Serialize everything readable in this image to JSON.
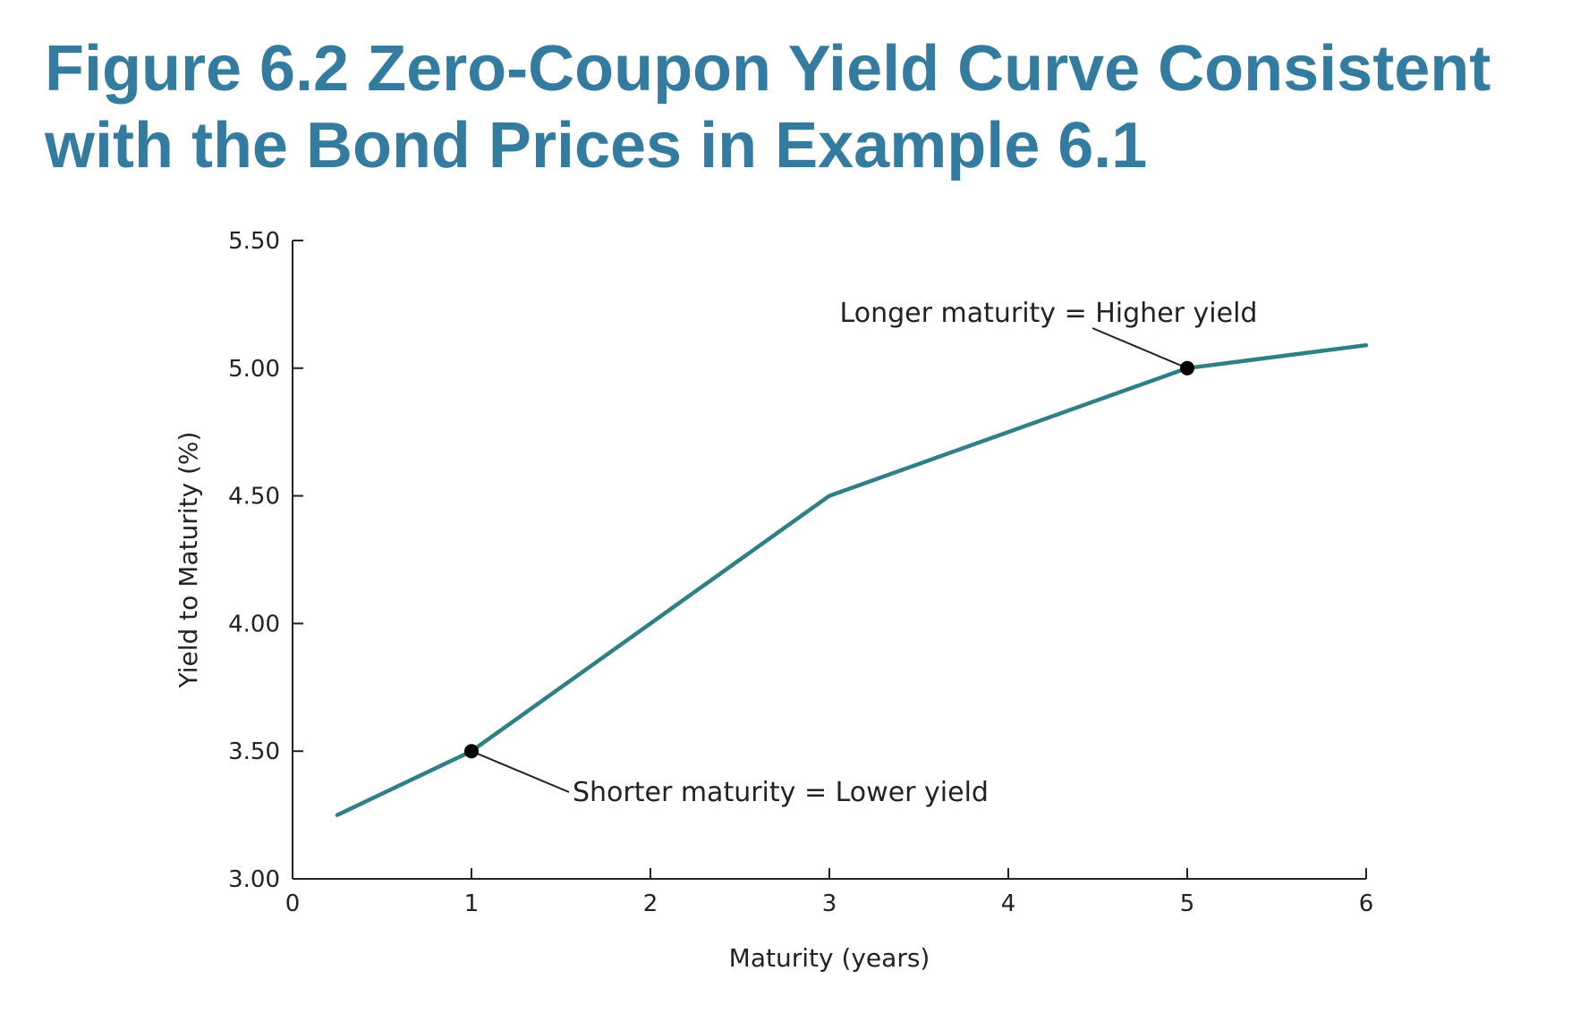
{
  "title": {
    "line1": "Figure 6.2 Zero-Coupon Yield Curve Consistent",
    "line2": "with the Bond Prices in Example 6.1"
  },
  "colors": {
    "title": "#347c9f",
    "series": "#2e7f86",
    "axis": "#222222",
    "marker": "#000000"
  },
  "chart_data": {
    "type": "line",
    "xlabel": "Maturity (years)",
    "ylabel": "Yield to Maturity (%)",
    "xlim": [
      0,
      6
    ],
    "ylim": [
      3.0,
      5.5
    ],
    "x_ticks": [
      "0",
      "1",
      "2",
      "3",
      "4",
      "5",
      "6"
    ],
    "y_ticks": [
      "3.00",
      "3.50",
      "4.00",
      "4.50",
      "5.00",
      "5.50"
    ],
    "grid": false,
    "legend": "none",
    "series": [
      {
        "x": [
          0.25,
          1,
          2,
          3,
          4,
          5,
          6
        ],
        "y": [
          3.25,
          3.5,
          4.0,
          4.5,
          4.75,
          5.0,
          5.09
        ]
      }
    ],
    "highlighted_points": [
      {
        "x": 1,
        "y": 3.5
      },
      {
        "x": 5,
        "y": 5.0
      }
    ],
    "annotations": [
      {
        "text": "Shorter maturity = Lower yield",
        "point_x": 1,
        "point_y": 3.5
      },
      {
        "text": "Longer maturity = Higher yield",
        "point_x": 5,
        "point_y": 5.0
      }
    ]
  }
}
